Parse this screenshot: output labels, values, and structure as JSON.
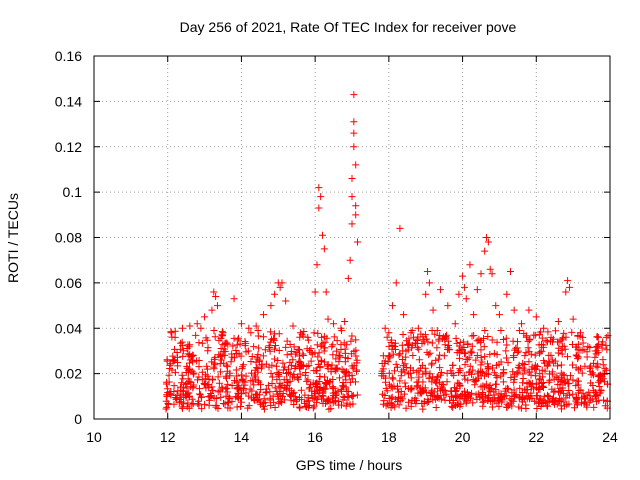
{
  "chart_data": {
    "type": "scatter",
    "title": "Day 256 of 2021, Rate Of TEC Index for receiver pove",
    "xlabel": "GPS time / hours",
    "ylabel": "ROTI / TECUs",
    "xlim": [
      10,
      24
    ],
    "ylim": [
      0,
      0.16
    ],
    "x_ticks": [
      "10",
      "12",
      "14",
      "16",
      "18",
      "20",
      "22",
      "24"
    ],
    "y_ticks": [
      "0",
      "0.02",
      "0.04",
      "0.06",
      "0.08",
      "0.1",
      "0.12",
      "0.14",
      "0.16"
    ],
    "grid": true,
    "marker": "+",
    "series_color": "#ff0000",
    "data_gap": [
      17.2,
      17.8
    ],
    "series": [
      {
        "name": "ROTI",
        "points": [
          [
            12.1,
            0.038
          ],
          [
            12.2,
            0.036
          ],
          [
            12.4,
            0.04
          ],
          [
            12.6,
            0.041
          ],
          [
            12.8,
            0.042
          ],
          [
            12.9,
            0.04
          ],
          [
            13.0,
            0.045
          ],
          [
            13.2,
            0.048
          ],
          [
            13.25,
            0.056
          ],
          [
            13.3,
            0.054
          ],
          [
            13.35,
            0.05
          ],
          [
            13.5,
            0.038
          ],
          [
            13.8,
            0.053
          ],
          [
            14.0,
            0.042
          ],
          [
            14.2,
            0.04
          ],
          [
            14.4,
            0.041
          ],
          [
            14.6,
            0.046
          ],
          [
            14.8,
            0.05
          ],
          [
            14.9,
            0.055
          ],
          [
            15.0,
            0.06
          ],
          [
            15.05,
            0.058
          ],
          [
            15.1,
            0.06
          ],
          [
            15.2,
            0.052
          ],
          [
            15.4,
            0.041
          ],
          [
            15.6,
            0.038
          ],
          [
            15.8,
            0.036
          ],
          [
            16.0,
            0.056
          ],
          [
            16.05,
            0.068
          ],
          [
            16.1,
            0.093
          ],
          [
            16.1,
            0.102
          ],
          [
            16.15,
            0.098
          ],
          [
            16.2,
            0.081
          ],
          [
            16.25,
            0.075
          ],
          [
            16.3,
            0.056
          ],
          [
            16.35,
            0.044
          ],
          [
            16.5,
            0.042
          ],
          [
            16.7,
            0.04
          ],
          [
            16.8,
            0.043
          ],
          [
            16.9,
            0.062
          ],
          [
            16.95,
            0.07
          ],
          [
            17.0,
            0.086
          ],
          [
            17.0,
            0.098
          ],
          [
            17.0,
            0.106
          ],
          [
            17.05,
            0.12
          ],
          [
            17.05,
            0.126
          ],
          [
            17.05,
            0.131
          ],
          [
            17.05,
            0.143
          ],
          [
            17.1,
            0.112
          ],
          [
            17.1,
            0.094
          ],
          [
            17.1,
            0.09
          ],
          [
            17.15,
            0.078
          ],
          [
            17.9,
            0.04
          ],
          [
            18.0,
            0.038
          ],
          [
            18.1,
            0.05
          ],
          [
            18.2,
            0.06
          ],
          [
            18.3,
            0.084
          ],
          [
            18.4,
            0.046
          ],
          [
            18.6,
            0.038
          ],
          [
            18.8,
            0.04
          ],
          [
            19.0,
            0.055
          ],
          [
            19.05,
            0.065
          ],
          [
            19.1,
            0.06
          ],
          [
            19.2,
            0.048
          ],
          [
            19.4,
            0.057
          ],
          [
            19.6,
            0.05
          ],
          [
            19.8,
            0.042
          ],
          [
            19.9,
            0.055
          ],
          [
            20.0,
            0.063
          ],
          [
            20.05,
            0.058
          ],
          [
            20.1,
            0.053
          ],
          [
            20.2,
            0.068
          ],
          [
            20.3,
            0.046
          ],
          [
            20.4,
            0.057
          ],
          [
            20.5,
            0.064
          ],
          [
            20.6,
            0.074
          ],
          [
            20.65,
            0.08
          ],
          [
            20.7,
            0.078
          ],
          [
            20.75,
            0.066
          ],
          [
            20.8,
            0.064
          ],
          [
            20.9,
            0.05
          ],
          [
            21.0,
            0.046
          ],
          [
            21.2,
            0.055
          ],
          [
            21.3,
            0.065
          ],
          [
            21.4,
            0.048
          ],
          [
            21.6,
            0.042
          ],
          [
            21.8,
            0.048
          ],
          [
            22.0,
            0.045
          ],
          [
            22.2,
            0.04
          ],
          [
            22.4,
            0.036
          ],
          [
            22.6,
            0.043
          ],
          [
            22.8,
            0.056
          ],
          [
            22.85,
            0.061
          ],
          [
            22.9,
            0.058
          ],
          [
            23.0,
            0.044
          ],
          [
            23.2,
            0.038
          ],
          [
            23.4,
            0.032
          ],
          [
            23.6,
            0.03
          ],
          [
            23.8,
            0.034
          ],
          [
            23.9,
            0.036
          ]
        ]
      }
    ],
    "dense_band": {
      "segments": [
        [
          11.95,
          17.15
        ],
        [
          17.8,
          23.95
        ]
      ],
      "y_min": 0.004,
      "y_max": 0.035,
      "approx_count": 1500
    }
  }
}
